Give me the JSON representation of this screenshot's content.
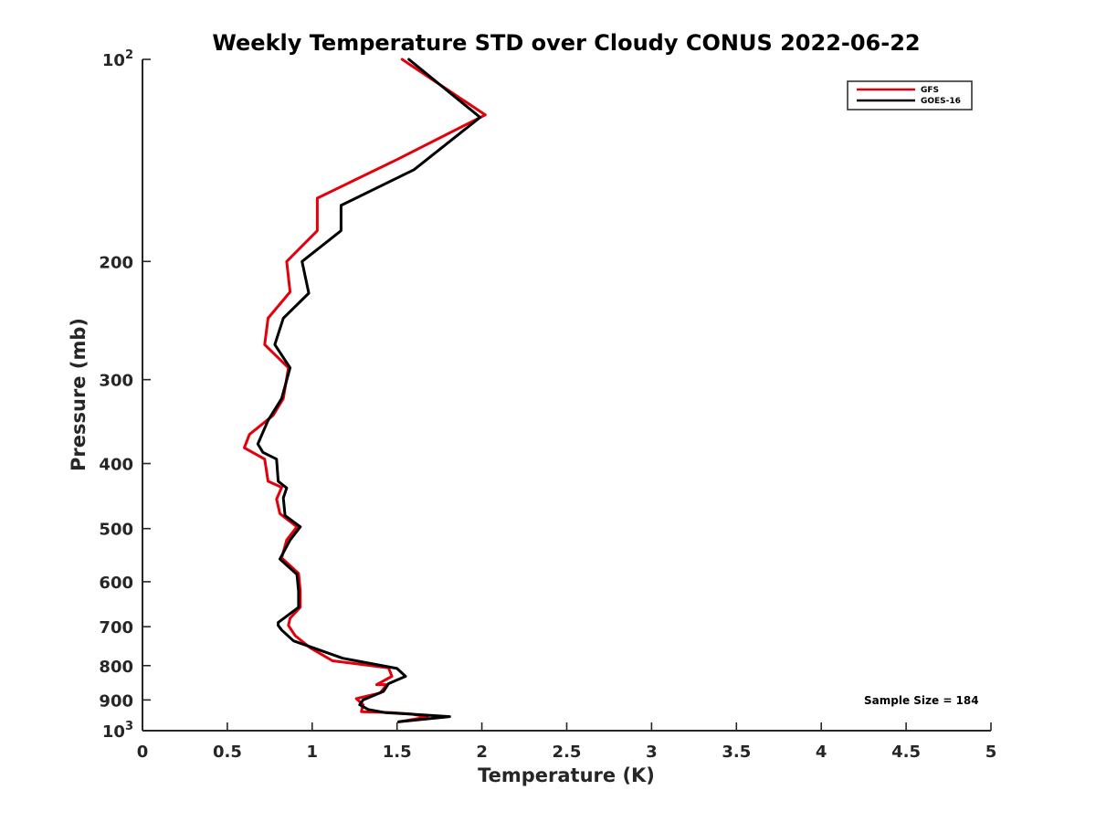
{
  "chart_data": {
    "type": "line",
    "title": "Weekly Temperature STD over Cloudy CONUS 2022-06-22",
    "xlabel": "Temperature (K)",
    "ylabel": "Pressure (mb)",
    "xlim": [
      0,
      5
    ],
    "ylim": [
      100,
      1000
    ],
    "y_scale": "log",
    "y_reversed": true,
    "grid": false,
    "legend_position": "top-right",
    "x_ticks": [
      0,
      0.5,
      1,
      1.5,
      2,
      2.5,
      3,
      3.5,
      4,
      4.5,
      5
    ],
    "x_tick_labels": [
      "0",
      "0.5",
      "1",
      "1.5",
      "2",
      "2.5",
      "3",
      "3.5",
      "4",
      "4.5",
      "5"
    ],
    "y_ticks": [
      {
        "value": 100,
        "base": "10",
        "exp": "2",
        "label": ""
      },
      {
        "value": 200,
        "label": "200"
      },
      {
        "value": 300,
        "label": "300"
      },
      {
        "value": 400,
        "label": "400"
      },
      {
        "value": 500,
        "label": "500"
      },
      {
        "value": 600,
        "label": "600"
      },
      {
        "value": 700,
        "label": "700"
      },
      {
        "value": 800,
        "label": "800"
      },
      {
        "value": 900,
        "label": "900"
      },
      {
        "value": 1000,
        "base": "10",
        "exp": "3",
        "label": ""
      }
    ],
    "series": [
      {
        "name": "GFS",
        "color": "#e3000b",
        "points": [
          [
            1.53,
            100
          ],
          [
            2.02,
            121
          ],
          [
            1.5,
            141
          ],
          [
            1.03,
            161
          ],
          [
            1.03,
            180
          ],
          [
            0.85,
            200
          ],
          [
            0.87,
            222
          ],
          [
            0.74,
            243
          ],
          [
            0.72,
            266
          ],
          [
            0.86,
            288
          ],
          [
            0.83,
            320
          ],
          [
            0.77,
            339
          ],
          [
            0.63,
            362
          ],
          [
            0.6,
            379
          ],
          [
            0.72,
            394
          ],
          [
            0.74,
            425
          ],
          [
            0.82,
            434
          ],
          [
            0.79,
            452
          ],
          [
            0.81,
            475
          ],
          [
            0.91,
            497
          ],
          [
            0.85,
            520
          ],
          [
            0.82,
            553
          ],
          [
            0.92,
            583
          ],
          [
            0.93,
            619
          ],
          [
            0.93,
            655
          ],
          [
            0.87,
            680
          ],
          [
            0.86,
            697
          ],
          [
            0.9,
            722
          ],
          [
            0.99,
            753
          ],
          [
            1.12,
            787
          ],
          [
            1.45,
            806
          ],
          [
            1.47,
            830
          ],
          [
            1.38,
            854
          ],
          [
            1.44,
            854
          ],
          [
            1.4,
            879
          ],
          [
            1.26,
            896
          ],
          [
            1.3,
            915
          ],
          [
            1.29,
            937
          ],
          [
            1.47,
            940
          ],
          [
            1.59,
            945
          ],
          [
            1.68,
            954
          ],
          [
            1.51,
            970
          ]
        ]
      },
      {
        "name": "GOES-16",
        "color": "#000000",
        "points": [
          [
            1.57,
            100
          ],
          [
            1.99,
            122
          ],
          [
            1.6,
            146
          ],
          [
            1.17,
            165
          ],
          [
            1.17,
            180
          ],
          [
            0.94,
            200
          ],
          [
            0.98,
            223
          ],
          [
            0.83,
            243
          ],
          [
            0.78,
            266
          ],
          [
            0.87,
            288
          ],
          [
            0.82,
            320
          ],
          [
            0.74,
            345
          ],
          [
            0.68,
            374
          ],
          [
            0.71,
            385
          ],
          [
            0.79,
            394
          ],
          [
            0.8,
            425
          ],
          [
            0.85,
            435
          ],
          [
            0.83,
            450
          ],
          [
            0.84,
            478
          ],
          [
            0.93,
            497
          ],
          [
            0.87,
            520
          ],
          [
            0.81,
            555
          ],
          [
            0.91,
            585
          ],
          [
            0.92,
            620
          ],
          [
            0.92,
            655
          ],
          [
            0.8,
            690
          ],
          [
            0.8,
            697
          ],
          [
            0.82,
            708
          ],
          [
            0.89,
            735
          ],
          [
            1.18,
            780
          ],
          [
            1.5,
            808
          ],
          [
            1.55,
            830
          ],
          [
            1.45,
            851
          ],
          [
            1.42,
            874
          ],
          [
            1.3,
            900
          ],
          [
            1.28,
            915
          ],
          [
            1.33,
            930
          ],
          [
            1.43,
            940
          ],
          [
            1.58,
            945
          ],
          [
            1.81,
            953
          ],
          [
            1.51,
            970
          ]
        ]
      }
    ],
    "legend": [
      {
        "name": "GFS",
        "color": "#e3000b"
      },
      {
        "name": "GOES-16",
        "color": "#000000"
      }
    ],
    "annotation": "Sample Size = 184"
  }
}
